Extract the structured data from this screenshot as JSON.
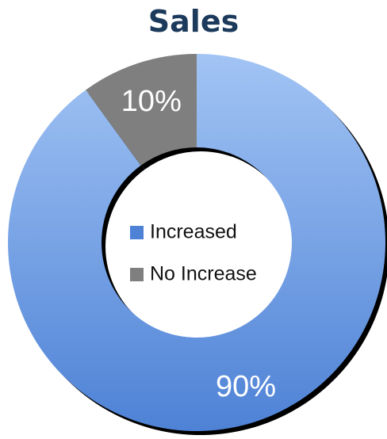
{
  "colors": {
    "title": "#1c3a5c",
    "increased_light": "#a2c4f4",
    "increased_dark": "#4e82d6",
    "no_increase": "#7f7f7f",
    "shadow": "#000000",
    "label": "#ffffff"
  },
  "chart_data": {
    "type": "pie",
    "variant": "donut",
    "title": "Sales",
    "categories": [
      "Increased",
      "No Increase"
    ],
    "values": [
      90,
      10
    ],
    "data_labels": [
      "90%",
      "10%"
    ],
    "legend": {
      "position": "center",
      "entries": [
        "Increased",
        "No Increase"
      ]
    }
  }
}
